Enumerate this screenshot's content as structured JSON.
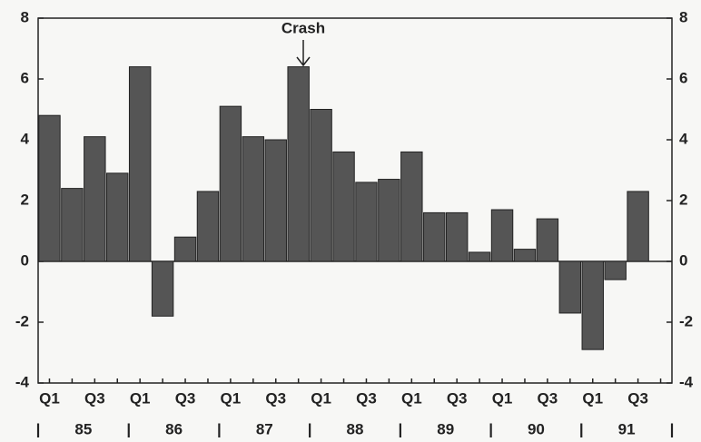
{
  "chart_data": {
    "type": "bar",
    "annotation": "Crash",
    "categories": [
      "Q1",
      null,
      "Q3",
      null,
      "Q1",
      null,
      "Q3",
      null,
      "Q1",
      null,
      "Q3",
      null,
      "Q1",
      null,
      "Q3",
      null,
      "Q1",
      null,
      "Q3",
      null,
      "Q1",
      null,
      "Q3",
      null,
      "Q1",
      null,
      "Q3",
      null
    ],
    "years": [
      "85",
      "86",
      "87",
      "88",
      "89",
      "90",
      "91"
    ],
    "values": [
      4.8,
      2.4,
      4.1,
      2.9,
      6.4,
      -1.8,
      0.8,
      2.3,
      5.1,
      4.1,
      4.0,
      6.4,
      5.0,
      3.6,
      2.6,
      2.7,
      3.6,
      1.6,
      1.6,
      0.3,
      1.7,
      0.4,
      1.4,
      -1.7,
      -2.9,
      -0.6,
      2.3,
      null
    ],
    "color": "#555555",
    "ylim": [
      -4,
      8
    ],
    "yticks": [
      -4,
      -2,
      0,
      2,
      4,
      6,
      8
    ],
    "y2lim": [
      -4,
      8
    ],
    "y2ticks": [
      -4,
      -2,
      0,
      2,
      4,
      6,
      8
    ]
  }
}
